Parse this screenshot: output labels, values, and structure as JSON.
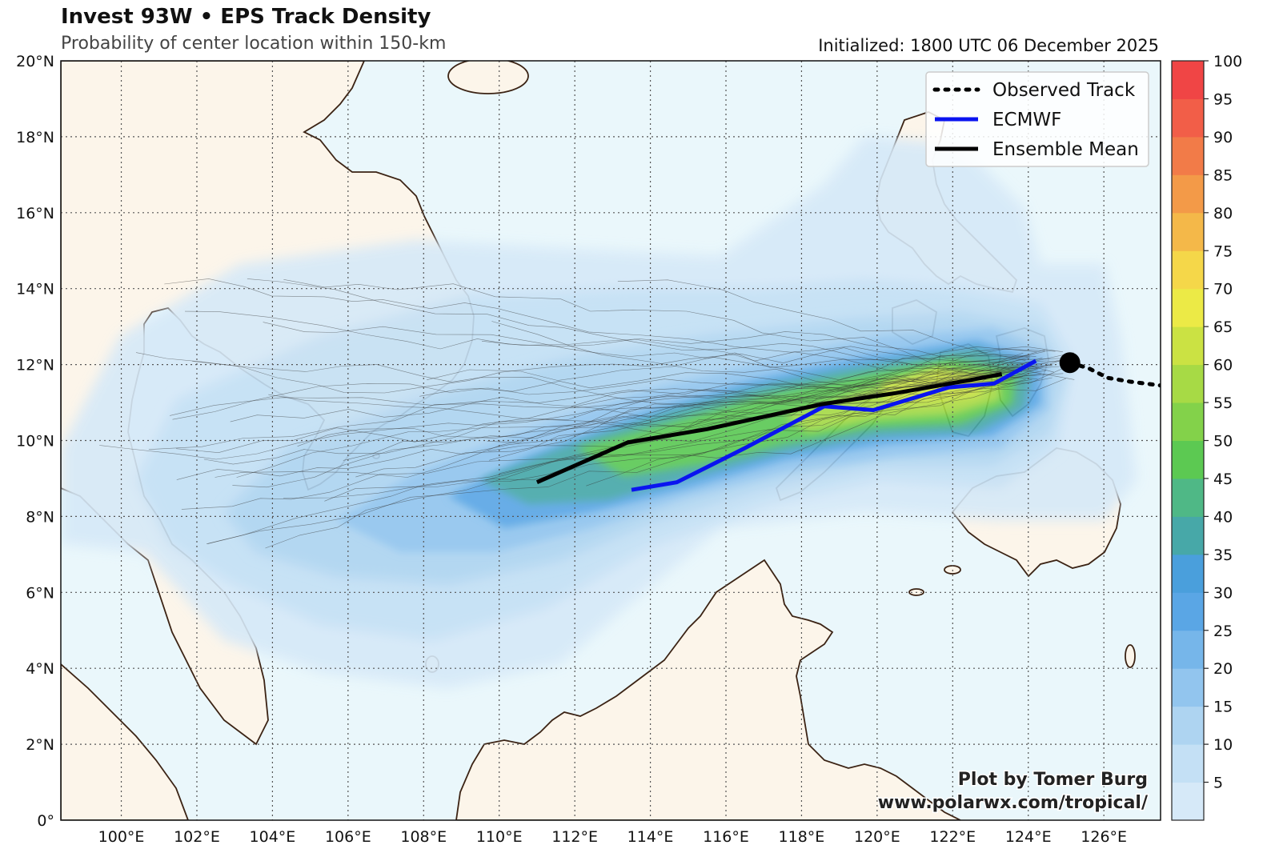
{
  "title": "Invest 93W • EPS Track Density",
  "subtitle": "Probability of center location within 150-km",
  "initialized": "Initialized: 1800 UTC 06 December 2025",
  "map": {
    "lon_range": [
      98.4,
      127.5
    ],
    "lat_range": [
      0,
      20
    ],
    "lon_ticks": [
      "100°E",
      "102°E",
      "104°E",
      "106°E",
      "108°E",
      "110°E",
      "112°E",
      "114°E",
      "116°E",
      "118°E",
      "120°E",
      "122°E",
      "124°E",
      "126°E"
    ],
    "lat_ticks": [
      "0°",
      "2°N",
      "4°N",
      "6°N",
      "8°N",
      "10°N",
      "12°N",
      "14°N",
      "16°N",
      "18°N",
      "20°N"
    ],
    "colors": {
      "ocean": "#eaf7fb",
      "land": "#fcf5ea",
      "coast": "#3b2314"
    }
  },
  "legend": {
    "observed": "Observed Track",
    "ecmwf": "ECMWF",
    "mean": "Ensemble Mean",
    "colors": {
      "observed": "#000000",
      "ecmwf": "#0a14f0",
      "mean": "#000000"
    }
  },
  "tracks": {
    "observed": [
      [
        125.1,
        12.05
      ],
      [
        125.6,
        11.9
      ],
      [
        126.1,
        11.65
      ],
      [
        126.7,
        11.55
      ],
      [
        127.5,
        11.45
      ]
    ],
    "ecmwf": [
      [
        113.5,
        8.7
      ],
      [
        114.7,
        8.9
      ],
      [
        116.5,
        9.8
      ],
      [
        118.6,
        10.9
      ],
      [
        119.9,
        10.8
      ],
      [
        121.9,
        11.4
      ],
      [
        123.1,
        11.5
      ],
      [
        124.2,
        12.1
      ]
    ],
    "ensemble_mean": [
      [
        111.0,
        8.9
      ],
      [
        113.4,
        9.95
      ],
      [
        115.5,
        10.3
      ],
      [
        118.5,
        10.95
      ],
      [
        120.5,
        11.25
      ],
      [
        122.5,
        11.6
      ],
      [
        123.3,
        11.75
      ]
    ]
  },
  "center_marker": {
    "lon": 125.1,
    "lat": 12.05
  },
  "colorbar": {
    "labels": [
      "5",
      "10",
      "15",
      "20",
      "25",
      "30",
      "35",
      "40",
      "45",
      "50",
      "55",
      "60",
      "65",
      "70",
      "75",
      "80",
      "85",
      "90",
      "95",
      "100"
    ],
    "colors": [
      "#d6e9f8",
      "#c4e0f5",
      "#aed4f1",
      "#92c5ee",
      "#76b6ea",
      "#5aa6e5",
      "#4a9fdc",
      "#47a8a8",
      "#4fb886",
      "#5cc952",
      "#83d24a",
      "#a7da45",
      "#cbe243",
      "#ecea46",
      "#f5d749",
      "#f4b849",
      "#f39a48",
      "#f27b48",
      "#f25e48",
      "#f04545"
    ]
  },
  "credit": {
    "line1": "Plot by Tomer Burg",
    "line2": "www.polarwx.com/tropical/"
  }
}
